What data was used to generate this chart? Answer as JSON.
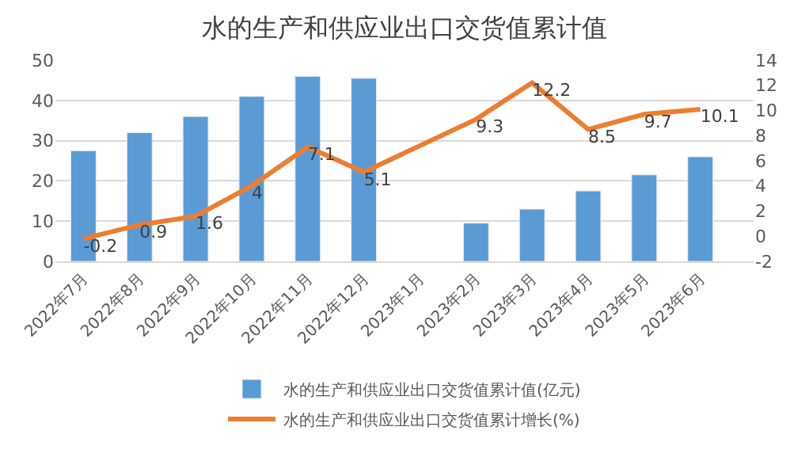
{
  "chart_data": {
    "type": "bar",
    "title": "水的生产和供应业出口交货值累计值",
    "categories": [
      "2022年7月",
      "2022年8月",
      "2022年9月",
      "2022年10月",
      "2022年11月",
      "2022年12月",
      "2023年1月",
      "2023年2月",
      "2023年3月",
      "2023年4月",
      "2023年5月",
      "2023年6月"
    ],
    "series": [
      {
        "name": "水的生产和供应业出口交货值累计值(亿元)",
        "color": "#5b9bd5",
        "values": [
          27.5,
          32,
          36,
          41,
          46,
          45.5,
          null,
          9.5,
          13,
          17.5,
          21.5,
          26
        ]
      },
      {
        "name": "水的生产和供应业出口交货值累计增长(%)",
        "type": "line",
        "axis": "y2",
        "color": "#ed7d31",
        "values": [
          -0.2,
          0.9,
          1.6,
          4,
          7.1,
          5.1,
          null,
          9.3,
          12.2,
          8.5,
          9.7,
          10.1
        ],
        "value_labels": [
          "-0.2",
          "0.9",
          "1.6",
          "4",
          "7.1",
          "5.1",
          null,
          "9.3",
          "12.2",
          "8.5",
          "9.7",
          "10.1"
        ]
      }
    ],
    "ylim": [
      0,
      50
    ],
    "yticks": [
      0,
      10,
      20,
      30,
      40,
      50
    ],
    "y2lim": [
      -2,
      14
    ],
    "y2ticks": [
      -2,
      0,
      2,
      4,
      6,
      8,
      10,
      12,
      14
    ],
    "grid": "y",
    "legend": "bottom",
    "marker": "none",
    "line_style": "solid"
  }
}
